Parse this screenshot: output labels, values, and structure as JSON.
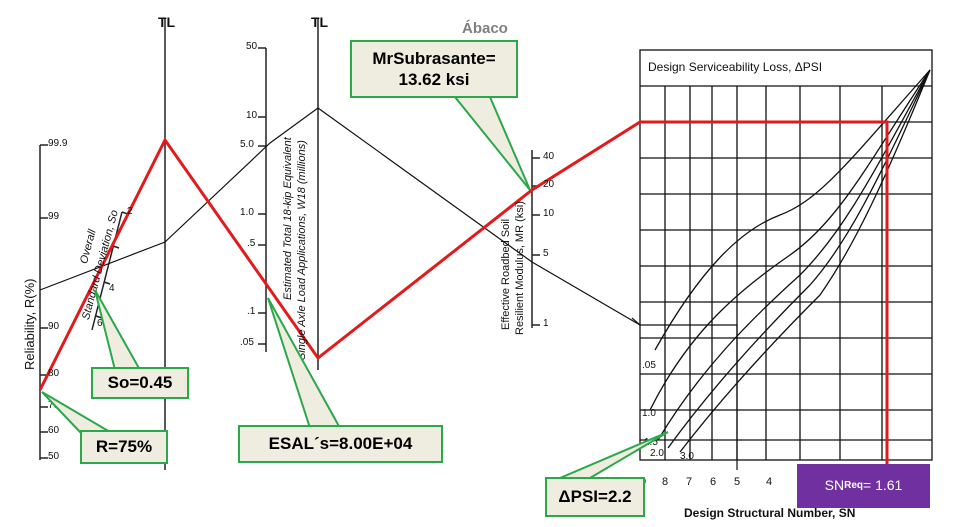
{
  "title": "Ábaco",
  "colors": {
    "red_path": "#e31a1c",
    "callout_border": "#2aa84a",
    "callout_fill": "#efeddf",
    "sn_box": "#7030a0"
  },
  "reliability": {
    "axis_label": "Reliability,  R(%)",
    "ticks": [
      "99.9",
      "99",
      "90",
      "80",
      "70",
      "60",
      "50"
    ]
  },
  "std_dev": {
    "axis_label_line1": "Overall",
    "axis_label_line2": "Standard Deviation,  So",
    "ticks": [
      "2",
      "4",
      "6"
    ]
  },
  "tl_labels": [
    "TL",
    "TL"
  ],
  "esal": {
    "axis_label_line1": "Estimated Total 18-kip Equivalent",
    "axis_label_line2": "Single Axle Load Applications, W18 (millions)",
    "ticks": [
      "50",
      "10",
      "5.0",
      "1.0",
      ".5",
      ".1",
      ".05"
    ]
  },
  "modulus": {
    "axis_label_line1": "Effective Roadbed Soil",
    "axis_label_line2": "Resilient Modulus, MR (ksi)",
    "ticks": [
      "40",
      "20",
      "10",
      "5",
      "1"
    ]
  },
  "dpsi_chart": {
    "title": "Design Serviceability Loss,  ΔPSI",
    "curve_labels": [
      ".05",
      "1.0",
      "1.5",
      "2.0",
      "3.0"
    ],
    "x_ticks": [
      "9",
      "8",
      "7",
      "6",
      "5",
      "4"
    ],
    "x_label": "Design  Structural  Number,  SN"
  },
  "callouts": {
    "mr": {
      "line1": "MrSubrasante=",
      "line2": "13.62 ksi"
    },
    "so": "So=0.45",
    "r": "R=75%",
    "esal": "ESAL´s=8.00E+04",
    "dpsi": "ΔPSI=2.2",
    "sn": {
      "prefix": "SN",
      "sub": "Req",
      "value": "= 1.61"
    }
  }
}
